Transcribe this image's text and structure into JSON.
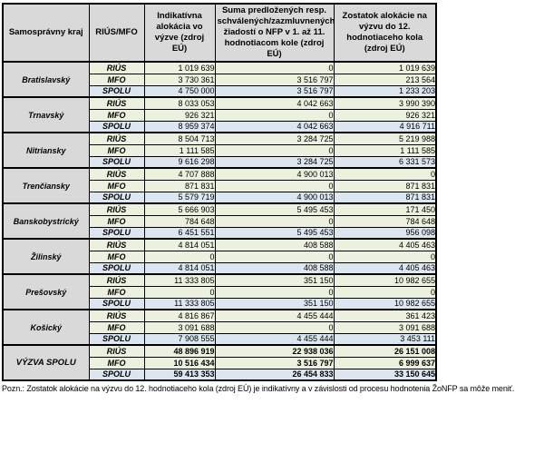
{
  "colors": {
    "header_bg": "#d9d9d9",
    "region_bg": "#d9d9d9",
    "data_bg": "#ebf1de",
    "spolu_bg": "#dce6f1",
    "border": "#000000"
  },
  "table": {
    "columns": [
      "Samosprávny kraj",
      "RIÚS/MFO",
      "Indikatívna alokácia vo výzve (zdroj EÚ)",
      "Suma predložených resp. schválených/zazmluvnených žiadostí o NFP  v 1. až 11. hodnotiacom kole (zdroj EÚ)",
      "Zostatok alokácie na výzvu do 12. hodnotiaceho kola (zdroj EÚ)"
    ],
    "groups": [
      {
        "region": "Bratislavský",
        "total": false,
        "rows": [
          {
            "label": "RIÚS",
            "values": [
              "1 019 639",
              "0",
              "1 019 639"
            ]
          },
          {
            "label": "MFO",
            "values": [
              "3 730 361",
              "3 516 797",
              "213 564"
            ]
          },
          {
            "label": "SPOLU",
            "values": [
              "4 750 000",
              "3 516 797",
              "1 233 203"
            ]
          }
        ]
      },
      {
        "region": "Trnavský",
        "total": false,
        "rows": [
          {
            "label": "RIÚS",
            "values": [
              "8 033 053",
              "4 042 663",
              "3 990 390"
            ]
          },
          {
            "label": "MFO",
            "values": [
              "926 321",
              "0",
              "926 321"
            ]
          },
          {
            "label": "SPOLU",
            "values": [
              "8 959 374",
              "4 042 663",
              "4 916 711"
            ]
          }
        ]
      },
      {
        "region": "Nitriansky",
        "total": false,
        "rows": [
          {
            "label": "RIÚS",
            "values": [
              "8 504 713",
              "3 284 725",
              "5 219 988"
            ]
          },
          {
            "label": "MFO",
            "values": [
              "1 111 585",
              "0",
              "1 111 585"
            ]
          },
          {
            "label": "SPOLU",
            "values": [
              "9 616 298",
              "3 284 725",
              "6 331 573"
            ]
          }
        ]
      },
      {
        "region": "Trenčiansky",
        "total": false,
        "rows": [
          {
            "label": "RIÚS",
            "values": [
              "4 707 888",
              "4 900 013",
              "0"
            ]
          },
          {
            "label": "MFO",
            "values": [
              "871 831",
              "0",
              "871 831"
            ]
          },
          {
            "label": "SPOLU",
            "values": [
              "5 579 719",
              "4 900 013",
              "871 831"
            ]
          }
        ]
      },
      {
        "region": "Banskobystrický",
        "total": false,
        "rows": [
          {
            "label": "RIÚS",
            "values": [
              "5 666 903",
              "5 495 453",
              "171 450"
            ]
          },
          {
            "label": "MFO",
            "values": [
              "784 648",
              "0",
              "784 648"
            ]
          },
          {
            "label": "SPOLU",
            "values": [
              "6 451 551",
              "5 495 453",
              "956 098"
            ]
          }
        ]
      },
      {
        "region": "Žilinský",
        "total": false,
        "rows": [
          {
            "label": "RIÚS",
            "values": [
              "4 814 051",
              "408 588",
              "4 405 463"
            ]
          },
          {
            "label": "MFO",
            "values": [
              "0",
              "0",
              "0"
            ]
          },
          {
            "label": "SPOLU",
            "values": [
              "4 814 051",
              "408 588",
              "4 405 463"
            ]
          }
        ]
      },
      {
        "region": "Prešovský",
        "total": false,
        "rows": [
          {
            "label": "RIÚS",
            "values": [
              "11 333 805",
              "351 150",
              "10 982 655"
            ]
          },
          {
            "label": "MFO",
            "values": [
              "0",
              "0",
              "0"
            ]
          },
          {
            "label": "SPOLU",
            "values": [
              "11 333 805",
              "351 150",
              "10 982 655"
            ]
          }
        ]
      },
      {
        "region": "Košický",
        "total": false,
        "rows": [
          {
            "label": "RIÚS",
            "values": [
              "4 816 867",
              "4 455 444",
              "361 423"
            ]
          },
          {
            "label": "MFO",
            "values": [
              "3 091 688",
              "0",
              "3 091 688"
            ]
          },
          {
            "label": "SPOLU",
            "values": [
              "7 908 555",
              "4 455 444",
              "3 453 111"
            ]
          }
        ]
      },
      {
        "region": "VÝZVA SPOLU",
        "total": true,
        "rows": [
          {
            "label": "RIÚS",
            "values": [
              "48 896 919",
              "22 938 036",
              "26 151 008"
            ]
          },
          {
            "label": "MFO",
            "values": [
              "10 516 434",
              "3 516 797",
              "6 999 637"
            ]
          },
          {
            "label": "SPOLU",
            "values": [
              "59 413 353",
              "26 454 833",
              "33 150 645"
            ]
          }
        ]
      }
    ]
  },
  "note": "Pozn.: Zostatok alokácie na výzvu do 12. hodnotiaceho kola (zdroj EÚ) je indikatívny a v závislosti od procesu hodnotenia ŽoNFP sa môže meniť."
}
